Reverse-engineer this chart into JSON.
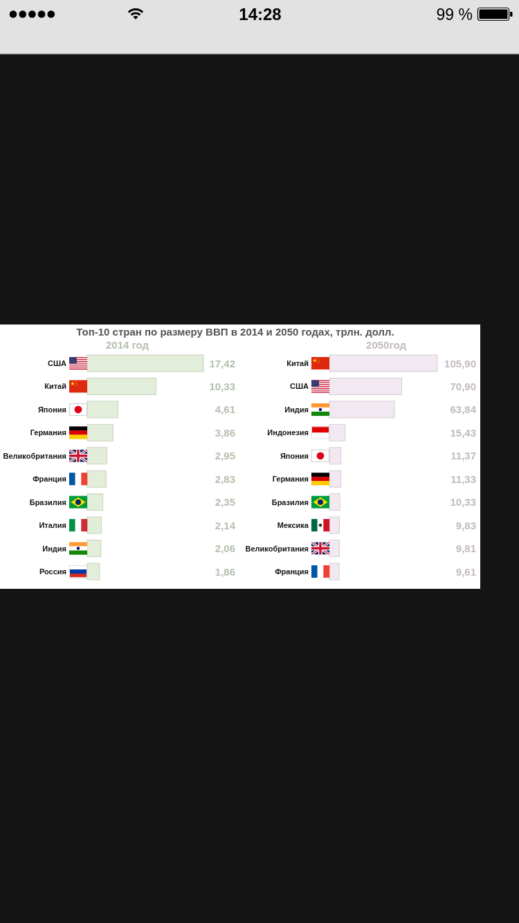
{
  "chart_data": [
    {
      "type": "bar",
      "orientation": "horizontal",
      "title": "Топ-10 стран по размеру ВВП в 2014 и 2050 годах, трлн. долл.",
      "subtitle": "2014 год",
      "categories": [
        "США",
        "Китай",
        "Япония",
        "Германия",
        "Великобритания",
        "Франция",
        "Бразилия",
        "Италия",
        "Индия",
        "Россия"
      ],
      "values": [
        17.42,
        10.33,
        4.61,
        3.86,
        2.95,
        2.83,
        2.35,
        2.14,
        2.06,
        1.86
      ],
      "color": "#e2eed9",
      "value_labels": [
        "17,42",
        "10,33",
        "4,61",
        "3,86",
        "2,95",
        "2,83",
        "2,35",
        "2,14",
        "2,06",
        "1,86"
      ],
      "annotations": [
        "14:28",
        "99 %"
      ]
    },
    {
      "type": "bar",
      "orientation": "horizontal",
      "subtitle": "2050год",
      "categories": [
        "Китай",
        "США",
        "Индия",
        "Индонезия",
        "Япония",
        "Германия",
        "Бразилия",
        "Мексика",
        "Великобритания",
        "Франция"
      ],
      "values": [
        105.9,
        70.9,
        63.84,
        15.43,
        11.37,
        11.33,
        10.33,
        9.83,
        9.81,
        9.61
      ],
      "color": "#f2e8f1",
      "value_labels": [
        "105,90",
        "70,90",
        "63,84",
        "15,43",
        "11,37",
        "11,33",
        "10,33",
        "9,83",
        "9,81",
        "9,61"
      ]
    }
  ]
}
